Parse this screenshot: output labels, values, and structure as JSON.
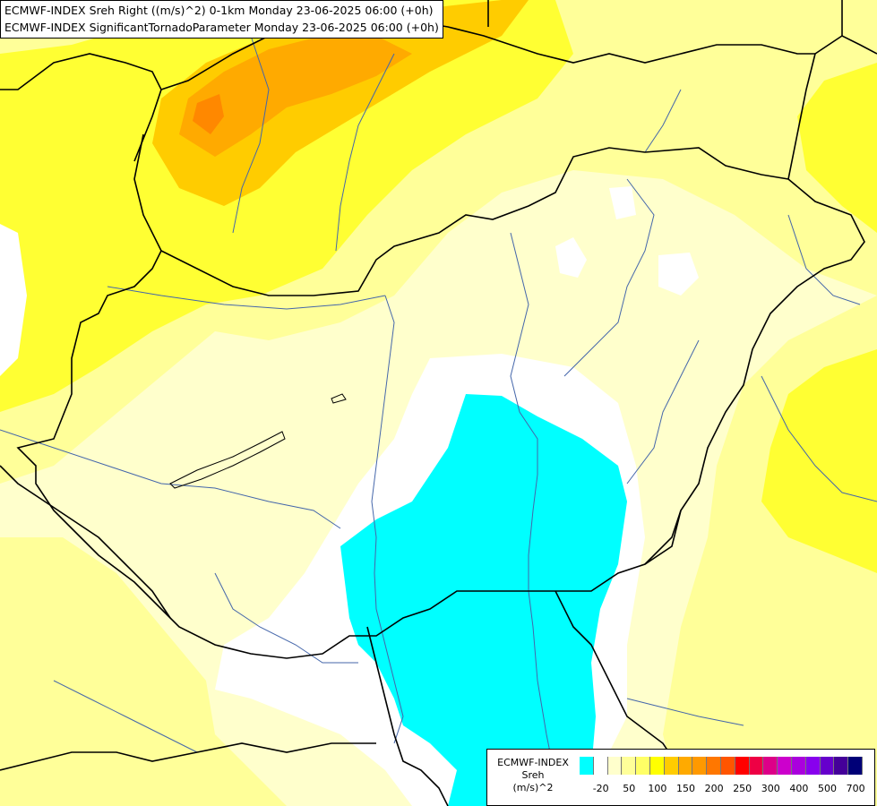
{
  "titles": {
    "line1": "ECMWF-INDEX Sreh Right ((m/s)^2) 0-1km Monday 23-06-2025 06:00 (+0h)",
    "line2": "ECMWF-INDEX SignificantTornadoParameter Monday 23-06-2025 06:00 (+0h)"
  },
  "legend": {
    "model": "ECMWF-INDEX",
    "variable": "Sreh",
    "unit": "(m/s)^2",
    "colors": [
      "#00ffff",
      "#ffffff",
      "#ffffcc",
      "#ffff99",
      "#ffff66",
      "#ffff00",
      "#ffcc00",
      "#ffaa00",
      "#ff9900",
      "#ff7700",
      "#ff5500",
      "#ff0000",
      "#ee0044",
      "#dd0088",
      "#cc00cc",
      "#aa00dd",
      "#8800ee",
      "#6600cc",
      "#440099",
      "#000077"
    ],
    "ticks": [
      {
        "label": "-20",
        "index": 1
      },
      {
        "label": "50",
        "index": 3
      },
      {
        "label": "100",
        "index": 5
      },
      {
        "label": "150",
        "index": 7
      },
      {
        "label": "200",
        "index": 9
      },
      {
        "label": "250",
        "index": 11
      },
      {
        "label": "300",
        "index": 13
      },
      {
        "label": "400",
        "index": 15
      },
      {
        "label": "500",
        "index": 17
      },
      {
        "label": "700",
        "index": 19
      }
    ]
  },
  "colors": {
    "background": "#ffffcc",
    "low": "#ffff99",
    "mid": "#ffff33",
    "high": "#ffcc00",
    "higher": "#ffaa00",
    "peak": "#ff8800",
    "negative": "#00ffff",
    "zero": "#ffffff",
    "border": "#000000",
    "river": "#4466aa"
  }
}
